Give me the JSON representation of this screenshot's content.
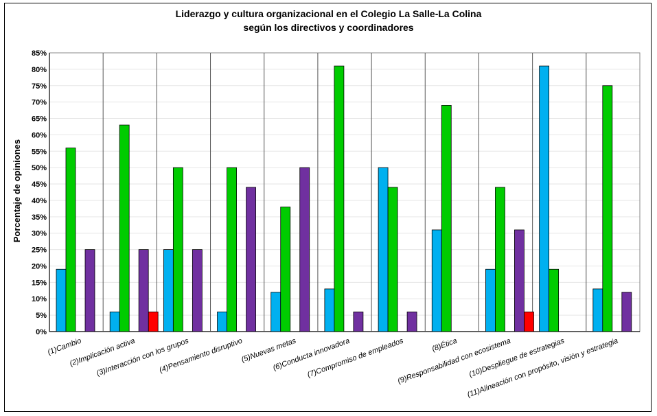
{
  "chart_data": {
    "type": "bar",
    "title": "Liderazgo y cultura organizacional en el Colegio La Salle-La Colina",
    "subtitle": "según los directivos y coordinadores",
    "ylabel": "Porcentaje de opiniones",
    "xlabel": "",
    "ylim": [
      0,
      85
    ],
    "yticks": [
      "0%",
      "5%",
      "10%",
      "15%",
      "20%",
      "25%",
      "30%",
      "35%",
      "40%",
      "45%",
      "50%",
      "55%",
      "60%",
      "65%",
      "70%",
      "75%",
      "80%",
      "85%"
    ],
    "grid": true,
    "legend": "none",
    "categories": [
      "(1)Cambio",
      "(2)Implicación activa",
      "(3)Interacción con los grupos",
      "(4)Pensamiento disruptivo",
      "(5)Nuevas metas",
      "(6)Conducta innovadora",
      "(7)Compromiso de empleados",
      "(8)Ética",
      "(9)Responsabilidad con ecosistema",
      "(10)Despliegue de estrategias",
      "(11)Alineación con propósito, visión y estrategia"
    ],
    "series": [
      {
        "color": "#00b0f0",
        "values": [
          19,
          6,
          25,
          6,
          12,
          13,
          50,
          31,
          19,
          81,
          13
        ]
      },
      {
        "color": "#00cc00",
        "values": [
          56,
          63,
          50,
          50,
          38,
          81,
          44,
          69,
          44,
          19,
          75
        ]
      },
      {
        "color": "#ff0000",
        "values": [
          0,
          6,
          0,
          0,
          0,
          0,
          0,
          0,
          6,
          0,
          0
        ]
      },
      {
        "color": "#7030a0",
        "values": [
          25,
          25,
          25,
          44,
          50,
          6,
          6,
          0,
          31,
          0,
          12
        ]
      }
    ]
  }
}
